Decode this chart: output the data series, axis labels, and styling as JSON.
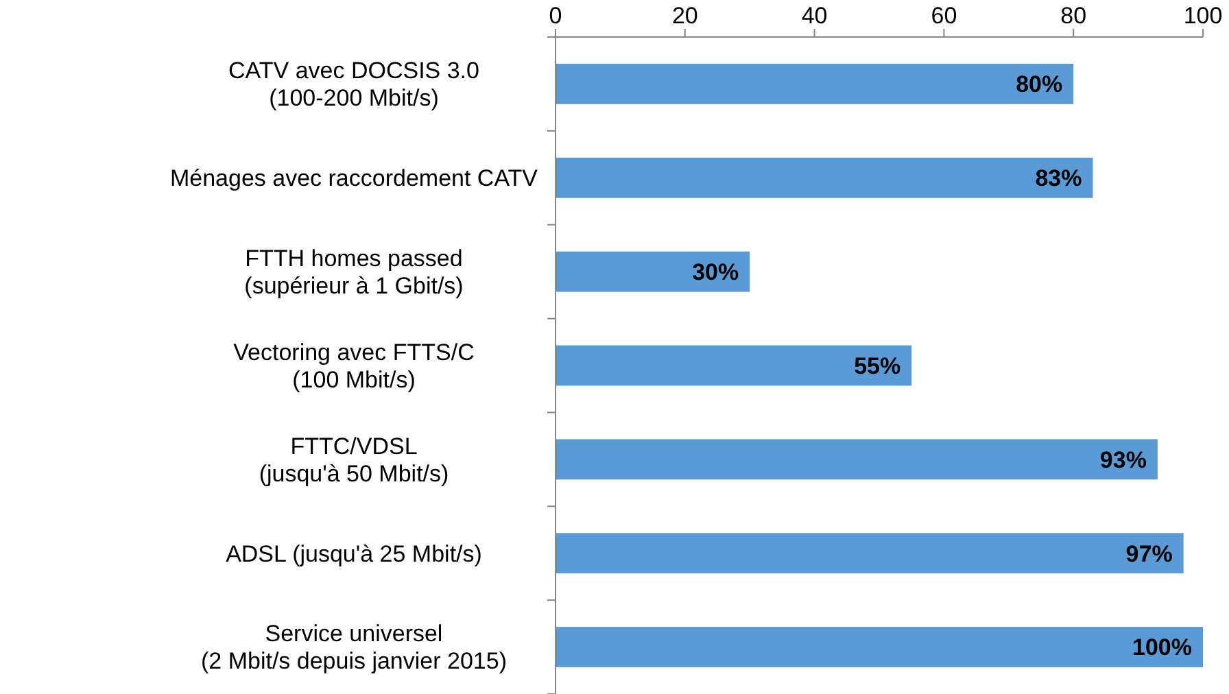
{
  "chart_data": {
    "type": "bar",
    "orientation": "horizontal",
    "categories": [
      "CATV avec DOCSIS 3.0\n(100-200 Mbit/s)",
      "Ménages avec raccordement CATV",
      "FTTH homes passed\n(supérieur à 1 Gbit/s)",
      "Vectoring avec FTTS/C\n(100 Mbit/s)",
      "FTTC/VDSL\n(jusqu'à 50 Mbit/s)",
      "ADSL (jusqu'à 25 Mbit/s)",
      "Service universel\n(2 Mbit/s depuis janvier 2015)"
    ],
    "values": [
      80,
      83,
      30,
      55,
      93,
      97,
      100
    ],
    "value_labels": [
      "80%",
      "83%",
      "30%",
      "55%",
      "93%",
      "97%",
      "100%"
    ],
    "color": "#5b9bd5",
    "xlim": [
      0,
      100
    ],
    "xticks": [
      0,
      20,
      40,
      60,
      80,
      100
    ],
    "grid": false
  }
}
